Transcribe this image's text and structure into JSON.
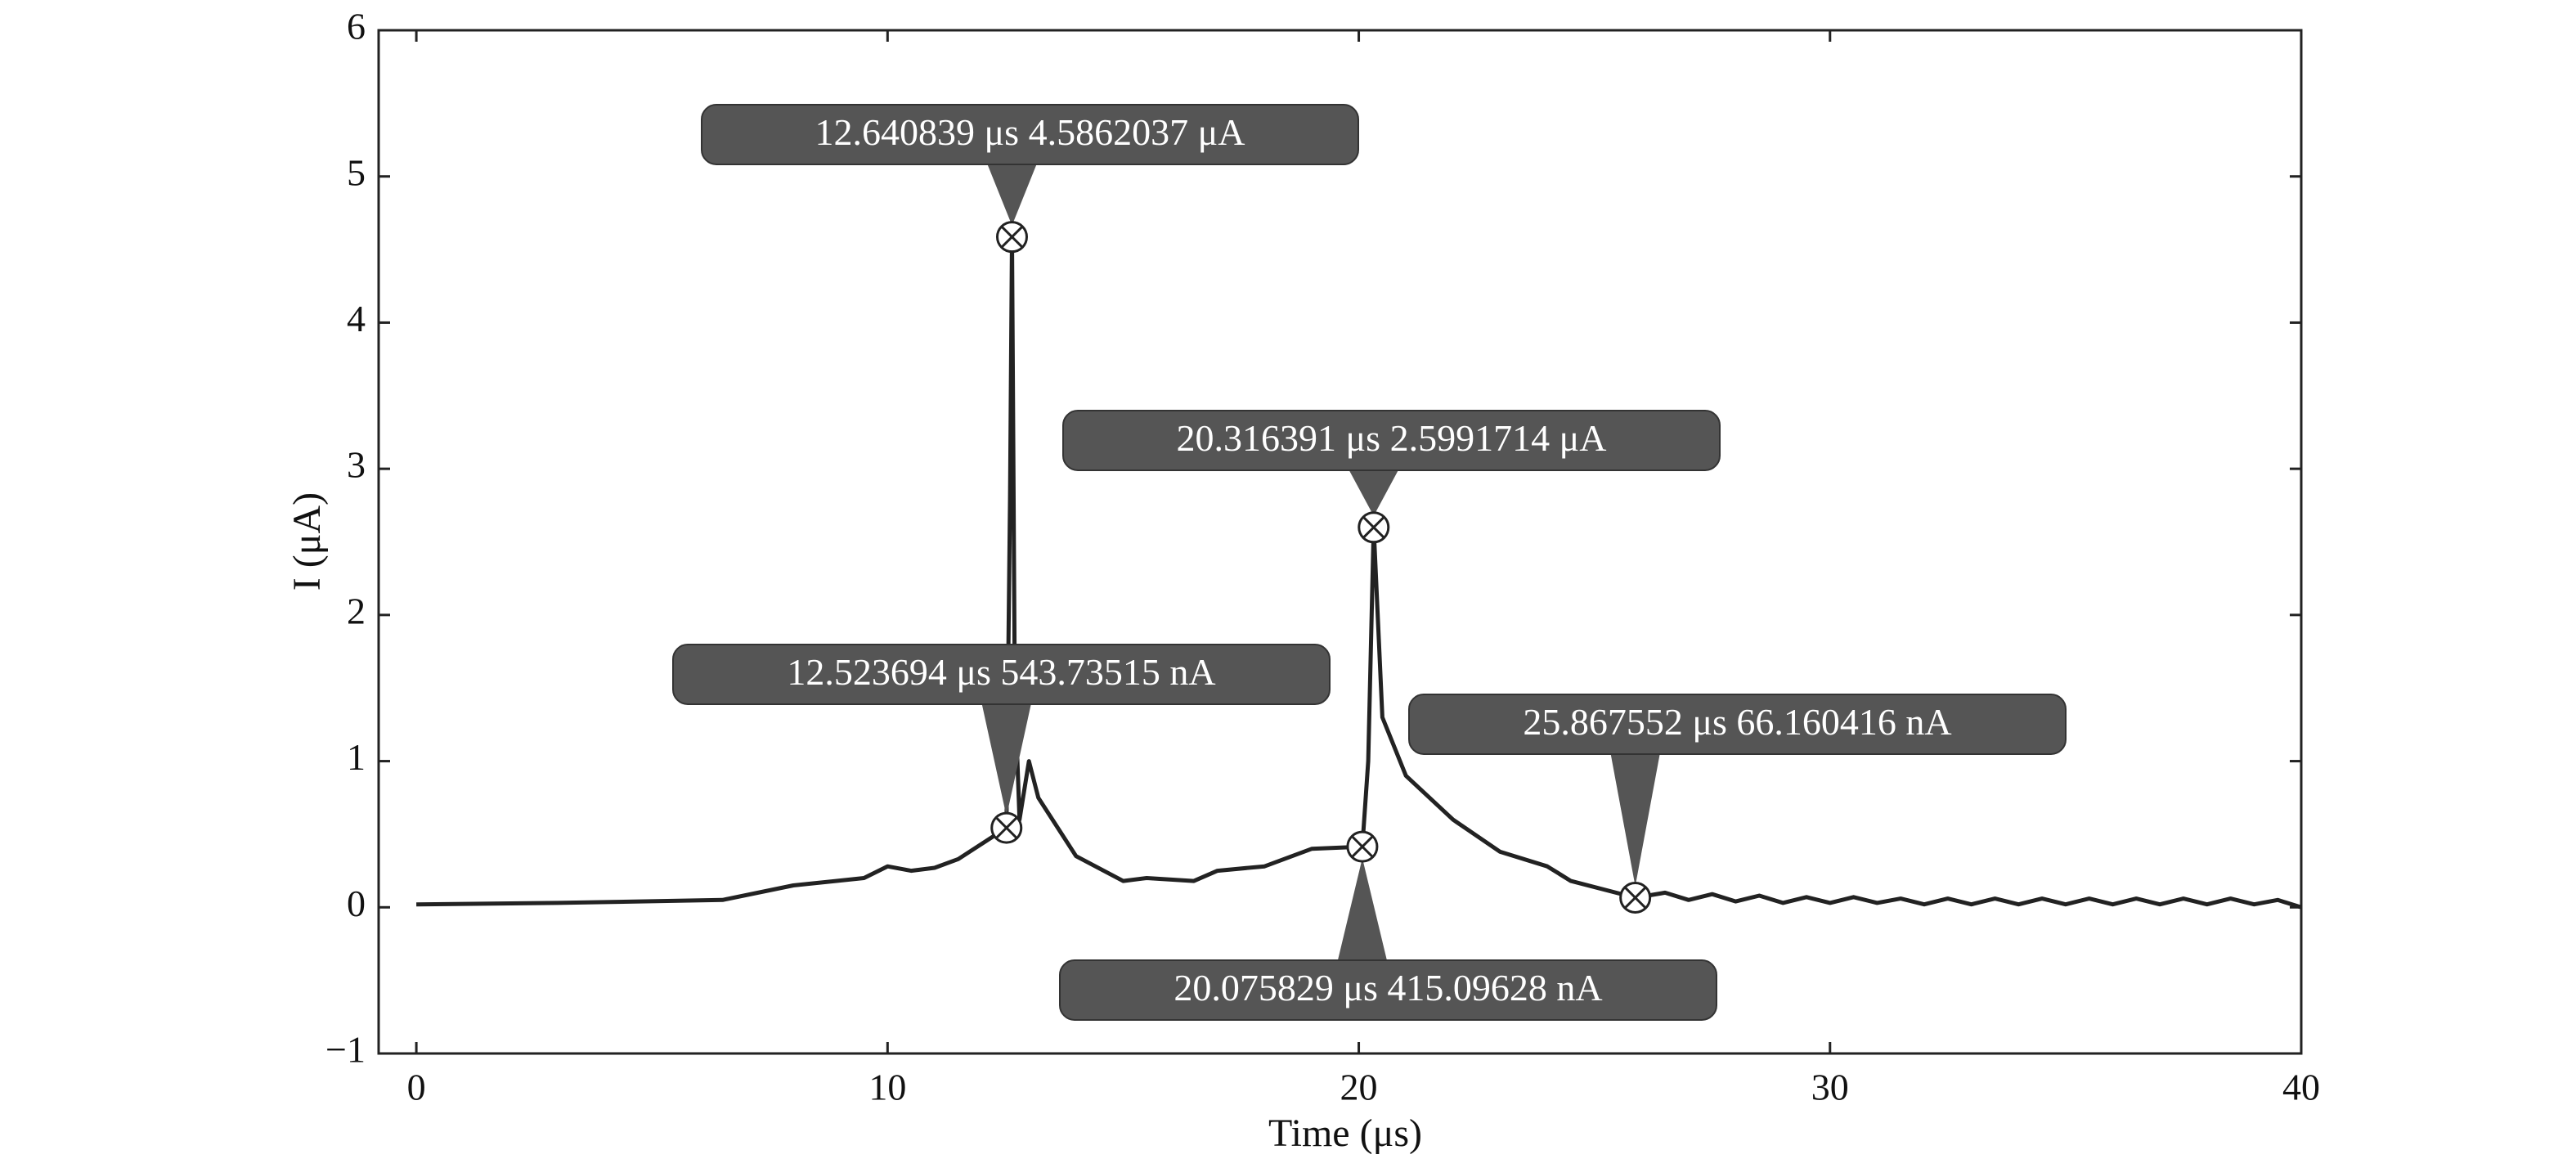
{
  "chart_data": {
    "type": "line",
    "xlabel": "Time (μs)",
    "ylabel": "I (μA)",
    "xlim": [
      -0.8,
      40
    ],
    "ylim": [
      -1,
      6
    ],
    "xticks": [
      0,
      10,
      20,
      30,
      40
    ],
    "yticks": [
      {
        "value": -1,
        "label": "−1"
      },
      0,
      1,
      2,
      3,
      4,
      5,
      6
    ],
    "color": "#222222",
    "x": [
      0,
      3,
      6.5,
      8,
      9.5,
      10,
      10.5,
      11,
      11.5,
      12.523694,
      12.6,
      12.640839,
      12.7,
      12.8,
      13,
      13.2,
      14,
      15,
      15.5,
      16.5,
      17,
      18,
      19,
      20.075829,
      20.2,
      20.316391,
      20.5,
      21,
      22,
      23,
      24,
      24.5,
      25.867552,
      26.5,
      27,
      27.5,
      28,
      28.5,
      29,
      29.5,
      30,
      30.5,
      31,
      31.5,
      32,
      32.5,
      33,
      33.5,
      34,
      34.5,
      35,
      35.5,
      36,
      36.5,
      37,
      37.5,
      38,
      38.5,
      39,
      39.5,
      40
    ],
    "values": [
      0.02,
      0.03,
      0.05,
      0.15,
      0.2,
      0.28,
      0.25,
      0.27,
      0.33,
      0.54373515,
      2.8,
      4.5862037,
      1.5,
      0.6,
      1.0,
      0.75,
      0.35,
      0.18,
      0.2,
      0.18,
      0.25,
      0.28,
      0.4,
      0.41509628,
      1.0,
      2.5991714,
      1.3,
      0.9,
      0.6,
      0.38,
      0.28,
      0.18,
      0.066160416,
      0.1,
      0.05,
      0.09,
      0.04,
      0.08,
      0.03,
      0.07,
      0.03,
      0.07,
      0.03,
      0.06,
      0.02,
      0.06,
      0.02,
      0.06,
      0.02,
      0.06,
      0.02,
      0.06,
      0.02,
      0.06,
      0.02,
      0.06,
      0.02,
      0.06,
      0.02,
      0.05,
      0.0
    ],
    "annotations": [
      {
        "text": "12.640839 μs 4.5862037 μA",
        "x": 12.640839,
        "y": 4.5862037
      },
      {
        "text": "20.316391 μs 2.5991714 μA",
        "x": 20.316391,
        "y": 2.5991714
      },
      {
        "text": "12.523694 μs 543.73515 nA",
        "x": 12.523694,
        "y": 0.54373515
      },
      {
        "text": "25.867552 μs 66.160416 nA",
        "x": 25.867552,
        "y": 0.066160416
      },
      {
        "text": "20.075829 μs 415.09628 nA",
        "x": 20.075829,
        "y": 0.41509628
      }
    ]
  }
}
